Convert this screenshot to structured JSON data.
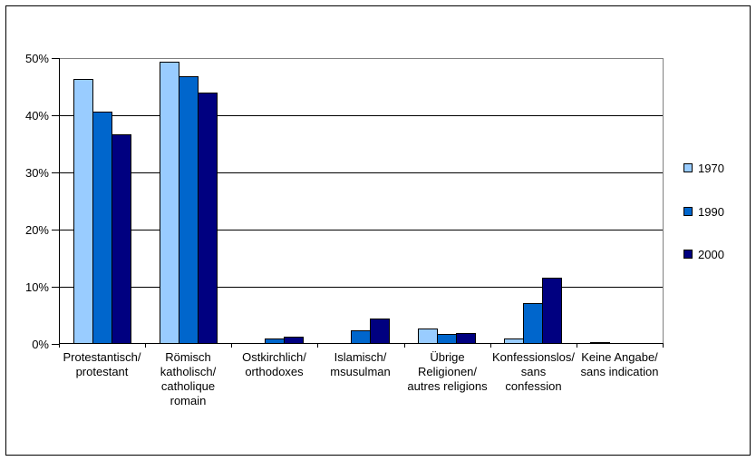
{
  "chart_data": {
    "type": "bar",
    "title": "",
    "xlabel": "",
    "ylabel": "",
    "ylim": [
      0,
      50
    ],
    "grid": true,
    "legend_position": "right",
    "categories": [
      {
        "label": "Protestantisch/ protestant",
        "lines": [
          "Protestantisch/",
          "protestant"
        ]
      },
      {
        "label": "Römisch katholisch/ catholique romain",
        "lines": [
          "Römisch",
          "katholisch/",
          "catholique",
          "romain"
        ]
      },
      {
        "label": "Ostkirchlich/ orthodoxes",
        "lines": [
          "Ostkirchlich/",
          "orthodoxes"
        ]
      },
      {
        "label": "Islamisch/ msusulman",
        "lines": [
          "Islamisch/",
          "msusulman"
        ]
      },
      {
        "label": "Übrige Religionen/ autres religions",
        "lines": [
          "Übrige",
          "Religionen/",
          "autres religions"
        ]
      },
      {
        "label": "Konfessionslos/ sans confession",
        "lines": [
          "Konfessionslos/",
          "sans",
          "confession"
        ]
      },
      {
        "label": "Keine Angabe/ sans indication",
        "lines": [
          "Keine Angabe/",
          "sans indication"
        ]
      }
    ],
    "series": [
      {
        "name": "1970",
        "color": "#99CCFF",
        "values": [
          46.3,
          49.4,
          0,
          0,
          2.7,
          1.0,
          0.3
        ]
      },
      {
        "name": "1990",
        "color": "#0066CC",
        "values": [
          40.6,
          46.8,
          1.0,
          2.4,
          1.7,
          7.2,
          0
        ]
      },
      {
        "name": "2000",
        "color": "#000080",
        "values": [
          36.6,
          44.0,
          1.2,
          4.5,
          1.9,
          11.6,
          0
        ]
      }
    ],
    "yticks": [
      {
        "value": 0,
        "label": "0%"
      },
      {
        "value": 10,
        "label": "10%"
      },
      {
        "value": 20,
        "label": "20%"
      },
      {
        "value": 30,
        "label": "30%"
      },
      {
        "value": 40,
        "label": "40%"
      },
      {
        "value": 50,
        "label": "50%"
      }
    ],
    "colors": {
      "bar_border": "#000000",
      "gridline": "#000000",
      "plot_border": "#808080",
      "axis": "#000000",
      "outer_border": "#000000",
      "background": "#FFFFFF",
      "text": "#000000"
    }
  }
}
